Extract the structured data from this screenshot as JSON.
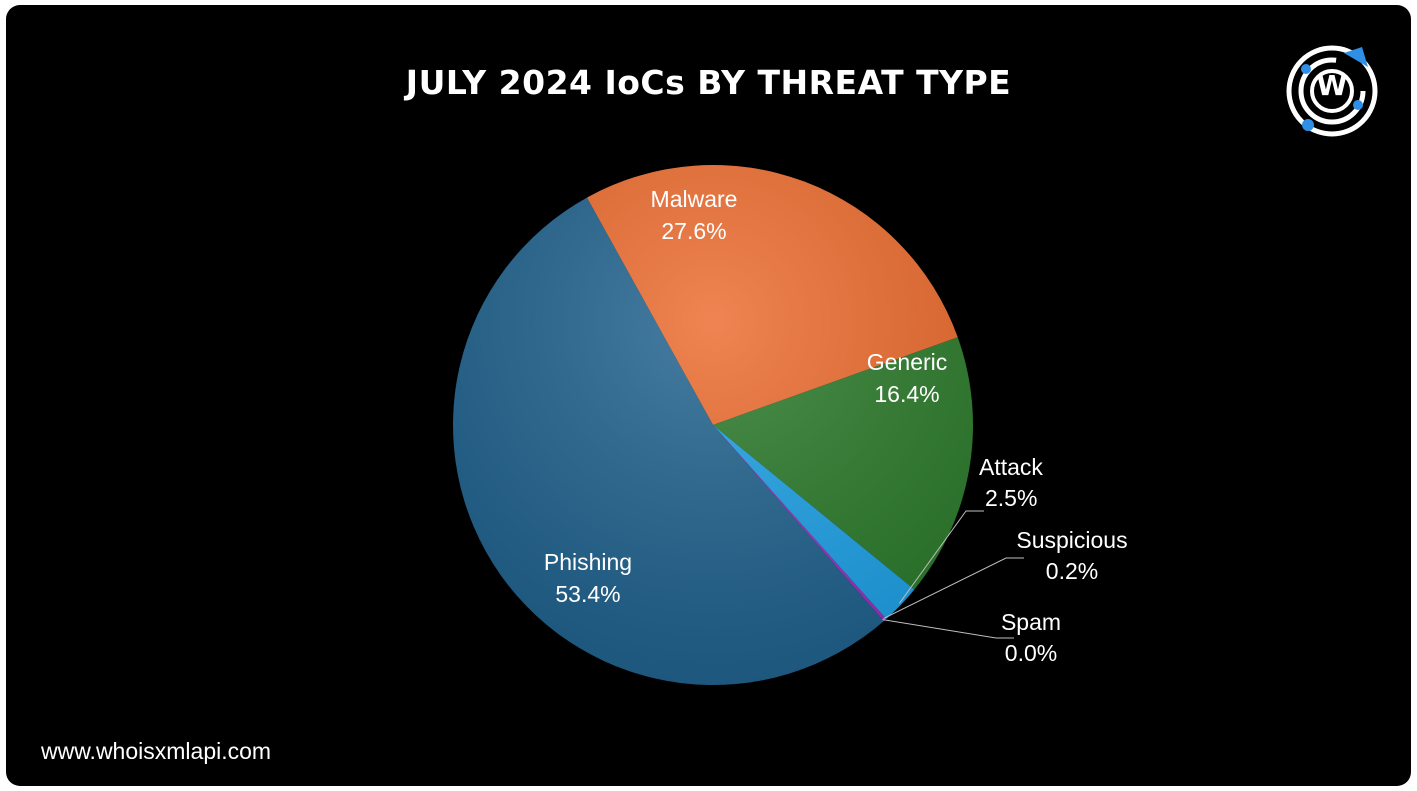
{
  "footer": {
    "website": "www.whoisxmlapi.com"
  },
  "logo": {
    "icon": "whoisxmlapi-logo-icon",
    "letter": "W",
    "accent": "#2f8fe6"
  },
  "chart_data": {
    "type": "pie",
    "title": "JULY 2024 IoCs BY THREAT TYPE",
    "unit": "%",
    "slices": [
      {
        "name": "Malware",
        "value": 27.6,
        "label": "27.6%",
        "color": "#ec6a2c"
      },
      {
        "name": "Generic",
        "value": 16.4,
        "label": "16.4%",
        "color": "#2a7a2a"
      },
      {
        "name": "Attack",
        "value": 2.5,
        "label": "2.5%",
        "color": "#1da1e6"
      },
      {
        "name": "Suspicious",
        "value": 0.2,
        "label": "0.2%",
        "color": "#9b2fbf"
      },
      {
        "name": "Spam",
        "value": 0.0,
        "label": "0.0%",
        "color": "#e0e0e0"
      },
      {
        "name": "Phishing",
        "value": 53.4,
        "label": "53.4%",
        "color": "#1f618d"
      }
    ]
  }
}
